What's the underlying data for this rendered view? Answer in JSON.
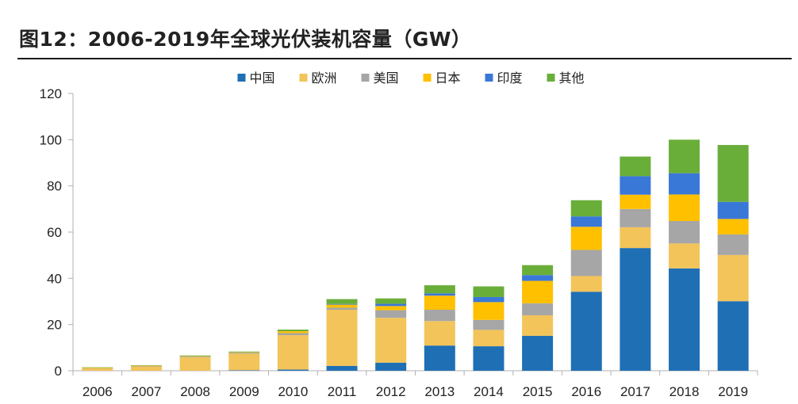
{
  "header": {
    "title": "图12：2006-2019年全球光伏装机容量（GW）"
  },
  "chart_data": {
    "type": "bar",
    "stacked": true,
    "title": "图12：2006-2019年全球光伏装机容量（GW）",
    "xlabel": "",
    "ylabel": "",
    "ylim": [
      0,
      120
    ],
    "yticks": [
      0,
      20,
      40,
      60,
      80,
      100,
      120
    ],
    "grid": false,
    "legend_position": "top-center",
    "categories": [
      "2006",
      "2007",
      "2008",
      "2009",
      "2010",
      "2011",
      "2012",
      "2013",
      "2014",
      "2015",
      "2016",
      "2017",
      "2018",
      "2019"
    ],
    "series": [
      {
        "name": "中国",
        "color": "#1F6FB4",
        "values": [
          0,
          0,
          0,
          0.2,
          0.5,
          2.1,
          3.5,
          10.9,
          10.6,
          15.1,
          34.2,
          53.1,
          44.3,
          30.1
        ]
      },
      {
        "name": "欧洲",
        "color": "#F2C45A",
        "values": [
          1.0,
          1.9,
          5.8,
          7.2,
          14.9,
          24.3,
          19.4,
          10.6,
          7.1,
          8.9,
          6.8,
          9.0,
          10.8,
          20.0
        ]
      },
      {
        "name": "美国",
        "color": "#A6A6A6",
        "values": [
          0.1,
          0.2,
          0.3,
          0.4,
          0.9,
          0.9,
          3.3,
          4.9,
          4.3,
          5.2,
          11.3,
          7.9,
          9.7,
          8.9
        ]
      },
      {
        "name": "日本",
        "color": "#FFC000",
        "values": [
          0.3,
          0.2,
          0.2,
          0.2,
          0.8,
          1.3,
          1.8,
          6.1,
          7.7,
          9.7,
          10.0,
          6.2,
          11.5,
          6.7
        ]
      },
      {
        "name": "印度",
        "color": "#3A78D8",
        "values": [
          0,
          0,
          0,
          0,
          0,
          0.3,
          1.0,
          1.0,
          2.2,
          2.5,
          4.5,
          8.0,
          9.2,
          7.4
        ]
      },
      {
        "name": "其他",
        "color": "#6AAE3A",
        "values": [
          0.1,
          0.1,
          0.3,
          0.3,
          0.7,
          2.1,
          2.3,
          3.5,
          4.6,
          4.3,
          7.0,
          8.5,
          14.5,
          24.6
        ]
      }
    ]
  }
}
